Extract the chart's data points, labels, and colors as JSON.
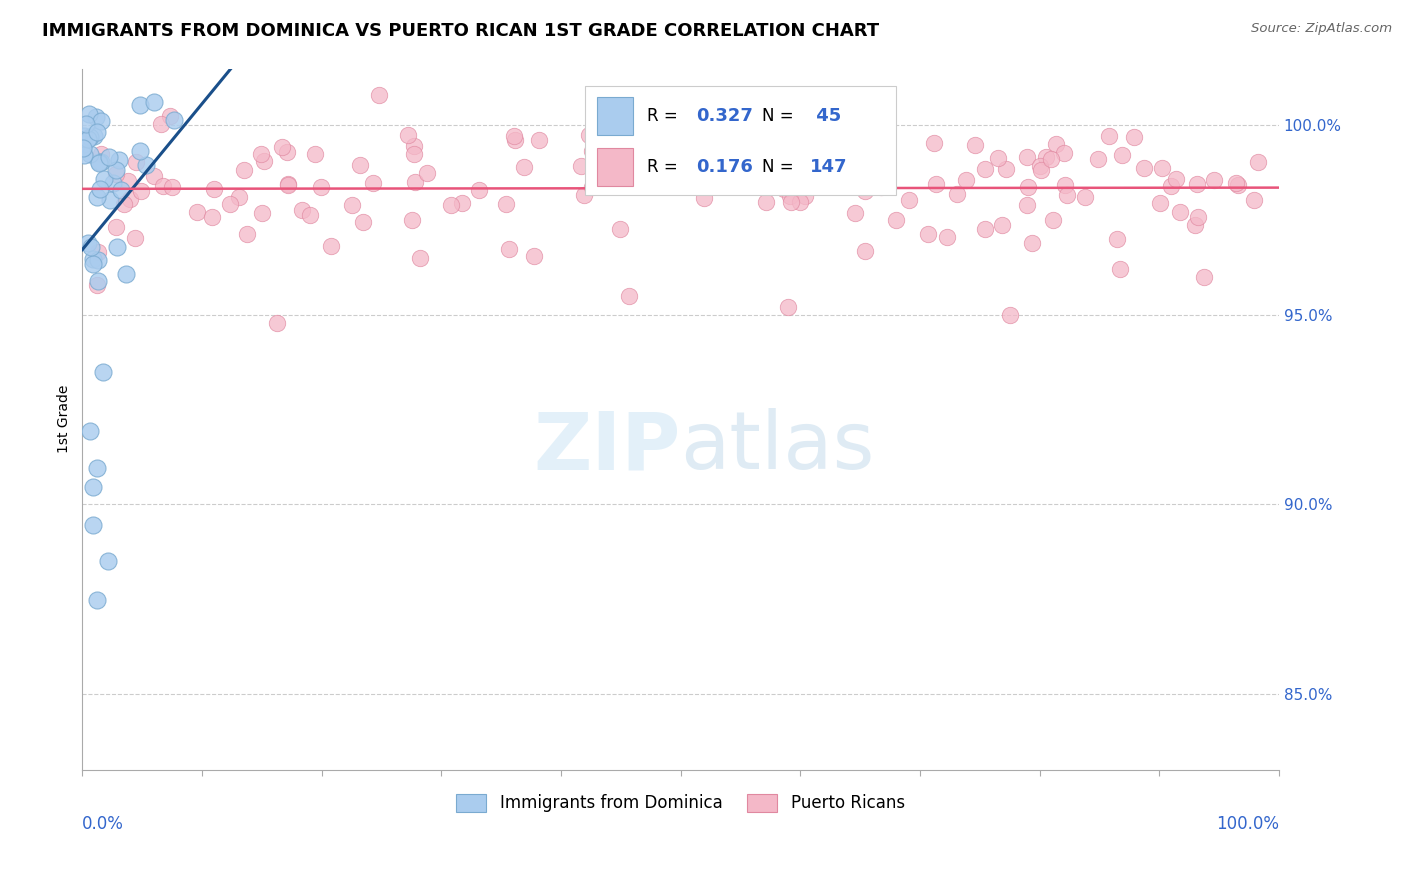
{
  "title": "IMMIGRANTS FROM DOMINICA VS PUERTO RICAN 1ST GRADE CORRELATION CHART",
  "source": "Source: ZipAtlas.com",
  "ylabel": "1st Grade",
  "right_yticks": [
    85.0,
    90.0,
    95.0,
    100.0
  ],
  "right_ytick_labels": [
    "85.0%",
    "90.0%",
    "95.0%",
    "100.0%"
  ],
  "series1_label": "Immigrants from Dominica",
  "series1_color": "#aaccee",
  "series1_edge_color": "#7aaad0",
  "series1_line_color": "#1a4f8a",
  "series1_R": 0.327,
  "series1_N": 45,
  "series2_label": "Puerto Ricans",
  "series2_color": "#f4b8c8",
  "series2_edge_color": "#e088a0",
  "series2_line_color": "#e8547a",
  "series2_R": 0.176,
  "series2_N": 147,
  "background_color": "#ffffff",
  "watermark_zip": "ZIP",
  "watermark_atlas": "atlas",
  "title_fontsize": 13,
  "axis_label_color": "#3366cc",
  "ylim_min": 83.0,
  "ylim_max": 101.5,
  "xlim_min": 0.0,
  "xlim_max": 100.0
}
